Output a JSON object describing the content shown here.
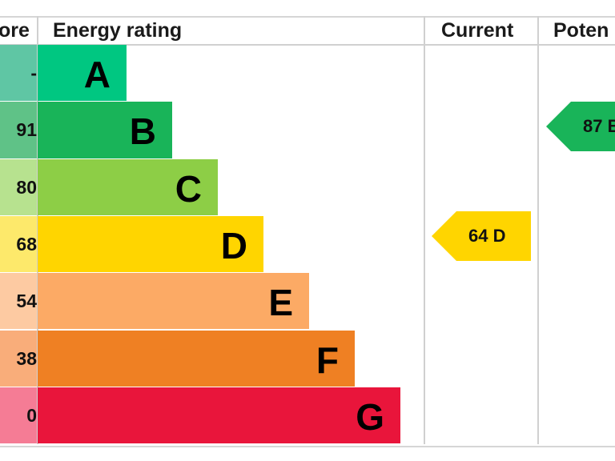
{
  "header": {
    "score": "ore",
    "energy_rating": "Energy rating",
    "current": "Current",
    "potential": "Poten"
  },
  "chart_data": {
    "type": "bar",
    "categories": [
      "A",
      "B",
      "C",
      "D",
      "E",
      "F",
      "G"
    ],
    "score_labels": [
      "-",
      "91",
      "80",
      "68",
      "54",
      "38",
      "0"
    ],
    "bar_colors": [
      "#00c781",
      "#19b459",
      "#8dce46",
      "#ffd500",
      "#fcaa65",
      "#ef8023",
      "#e9153b"
    ],
    "score_colors": [
      "#5fc6a4",
      "#5fc287",
      "#b7e28f",
      "#fde96b",
      "#fdcaa2",
      "#f9ad7a",
      "#f57c95"
    ],
    "current": {
      "value": 64,
      "rating": "D",
      "label": "64 D",
      "color": "#ffd500"
    },
    "potential": {
      "value": 87,
      "rating": "B",
      "label": "87 B",
      "color": "#19b459"
    }
  }
}
